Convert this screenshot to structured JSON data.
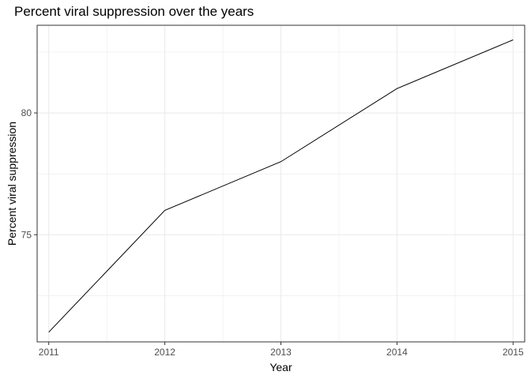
{
  "chart_data": {
    "type": "line",
    "title": "Percent viral suppression over the years",
    "xlabel": "Year",
    "ylabel": "Percent viral suppression",
    "x": [
      2011,
      2012,
      2013,
      2014,
      2015
    ],
    "series": [
      {
        "values": [
          71,
          76,
          78,
          81,
          83
        ]
      }
    ],
    "xlim": [
      2010.9,
      2015.1
    ],
    "ylim": [
      70.6,
      83.6
    ],
    "x_ticks": [
      2011,
      2012,
      2013,
      2014,
      2015
    ],
    "y_ticks": [
      75,
      80
    ],
    "y_minor_ticks": [
      72.5,
      77.5,
      82.5
    ],
    "grid": true,
    "colors": {
      "line": "#000000",
      "grid": "#ebebeb",
      "panel_border": "#333333"
    }
  }
}
